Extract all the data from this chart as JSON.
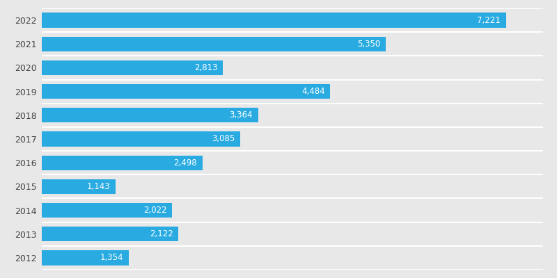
{
  "years": [
    "2022",
    "2021",
    "2020",
    "2019",
    "2018",
    "2017",
    "2016",
    "2015",
    "2014",
    "2013",
    "2012"
  ],
  "values": [
    7221,
    5350,
    2813,
    4484,
    3364,
    3085,
    2498,
    1143,
    2022,
    2122,
    1354
  ],
  "labels": [
    "7,221",
    "5,350",
    "2,813",
    "4,484",
    "3,364",
    "3,085",
    "2,498",
    "1,143",
    "2,022",
    "2,122",
    "1,354"
  ],
  "bar_color": "#29abe2",
  "background_color": "#e8e8e8",
  "text_color": "#ffffff",
  "ylabel_color": "#444444",
  "xlim": [
    0,
    7800
  ],
  "bar_height": 0.62,
  "label_fontsize": 8.5,
  "tick_fontsize": 9.0
}
